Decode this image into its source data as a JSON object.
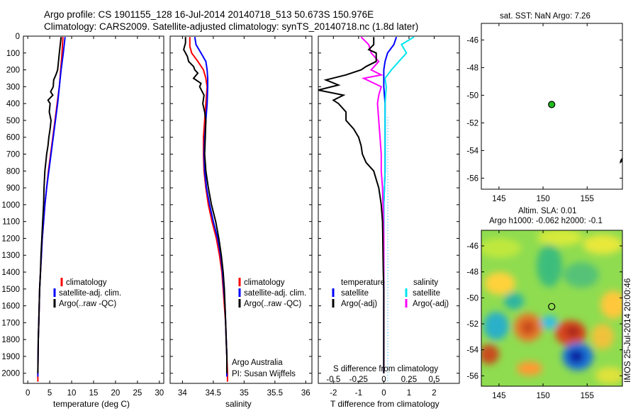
{
  "titles": {
    "line1": "Argo profile: CS 1901155_128 16-Jul-2014 20140718_513 50.673S 150.976E",
    "line2": "Climatology: CARS2009. Satellite-adjusted climatology: synTS_20140718.nc (1.8d later)"
  },
  "colors": {
    "climatology": "#ff0000",
    "satellite": "#0000ff",
    "argo": "#000000",
    "temp_diff_satellite": "#0000ff",
    "sal_diff_satellite": "#00e5ee",
    "sal_diff_argo": "#ff00ff",
    "argo_marker": "#22bb22"
  },
  "depth_ticks": [
    "0",
    "100",
    "200",
    "300",
    "400",
    "500",
    "600",
    "700",
    "800",
    "900",
    "1000",
    "1100",
    "1200",
    "1300",
    "1400",
    "1500",
    "1600",
    "1700",
    "1800",
    "1900",
    "2000"
  ],
  "chart_data": [
    {
      "id": "temperature",
      "type": "line",
      "xlabel": "temperature (deg C)",
      "ylabel": "",
      "xlim": [
        -1,
        31
      ],
      "ylim": [
        2060,
        0
      ],
      "xticks": [
        "0",
        "5",
        "10",
        "15",
        "20",
        "25",
        "30"
      ],
      "legend": {
        "placement": "lower-center",
        "entries": [
          "climatology",
          "satellite-adj. clim.",
          "Argo(..raw -QC)"
        ]
      },
      "series": [
        {
          "key": "climatology",
          "depth": [
            5,
            100,
            200,
            300,
            400,
            500,
            600,
            700,
            800,
            900,
            1000,
            1100,
            1200,
            1300,
            1400,
            1500,
            1600,
            1700,
            1800,
            1900,
            2000,
            2050
          ],
          "values": [
            8.0,
            7.8,
            7.5,
            7.2,
            6.7,
            6.2,
            5.7,
            5.2,
            4.7,
            4.3,
            3.9,
            3.6,
            3.3,
            3.1,
            2.9,
            2.7,
            2.6,
            2.5,
            2.4,
            2.35,
            2.3,
            2.3
          ]
        },
        {
          "key": "satellite",
          "depth": [
            5,
            100,
            200,
            300,
            400,
            500,
            600,
            700,
            800,
            900,
            1000,
            1100,
            1200,
            1300,
            1400,
            1500,
            1600,
            1700,
            1800,
            1900,
            2000,
            2020
          ],
          "values": [
            8.5,
            8.1,
            7.6,
            7.2,
            6.8,
            6.3,
            5.8,
            5.3,
            4.8,
            4.3,
            3.9,
            3.6,
            3.3,
            3.1,
            2.9,
            2.7,
            2.6,
            2.5,
            2.4,
            2.35,
            2.3,
            2.3
          ]
        },
        {
          "key": "argo",
          "depth": [
            5,
            50,
            100,
            150,
            200,
            230,
            260,
            300,
            330,
            350,
            380,
            400,
            450,
            500,
            550,
            600,
            650,
            700,
            750,
            800,
            850,
            900,
            1000,
            1100,
            1200,
            1300,
            1400,
            1500,
            1600,
            1700,
            1800,
            1900,
            2000
          ],
          "values": [
            7.6,
            7.4,
            7.2,
            7.0,
            6.8,
            6.4,
            5.9,
            5.8,
            5.2,
            5.7,
            4.6,
            5.1,
            4.9,
            5.3,
            5.1,
            4.8,
            4.6,
            4.3,
            4.1,
            3.9,
            3.8,
            3.7,
            3.6,
            3.4,
            3.2,
            3.0,
            2.9,
            2.7,
            2.6,
            2.5,
            2.4,
            2.35,
            2.3
          ]
        }
      ]
    },
    {
      "id": "salinity",
      "type": "line",
      "xlabel": "salinity",
      "ylabel": "",
      "xlim": [
        33.8,
        36.1
      ],
      "ylim": [
        2060,
        0
      ],
      "xticks": [
        "34",
        "34.5",
        "35",
        "35.5",
        "36"
      ],
      "legend": {
        "placement": "lower-center",
        "entries": [
          "climatology",
          "satellite-adj. clim.",
          "Argo(..raw -QC)"
        ]
      },
      "series": [
        {
          "key": "climatology",
          "depth": [
            5,
            60,
            100,
            150,
            200,
            250,
            300,
            400,
            500,
            600,
            700,
            800,
            900,
            1000,
            1100,
            1200,
            1300,
            1400,
            1500,
            1600,
            1700,
            1800,
            1900,
            2000,
            2050
          ],
          "values": [
            34.12,
            34.12,
            34.15,
            34.25,
            34.34,
            34.38,
            34.4,
            34.38,
            34.36,
            34.34,
            34.34,
            34.35,
            34.38,
            34.42,
            34.48,
            34.55,
            34.6,
            34.64,
            34.66,
            34.68,
            34.7,
            34.71,
            34.72,
            34.73,
            34.73
          ]
        },
        {
          "key": "satellite",
          "depth": [
            5,
            50,
            100,
            150,
            200,
            250,
            300,
            400,
            500,
            600,
            700,
            800,
            900,
            1000,
            1100,
            1200,
            1300,
            1400,
            1500,
            1600,
            1700,
            1800,
            1900,
            2000,
            2020
          ],
          "values": [
            34.2,
            34.22,
            34.3,
            34.38,
            34.4,
            34.41,
            34.41,
            34.4,
            34.38,
            34.36,
            34.35,
            34.36,
            34.39,
            34.44,
            34.5,
            34.57,
            34.62,
            34.65,
            34.67,
            34.69,
            34.7,
            34.71,
            34.72,
            34.72,
            34.72
          ]
        },
        {
          "key": "argo",
          "depth": [
            5,
            40,
            80,
            120,
            150,
            180,
            200,
            220,
            250,
            280,
            300,
            350,
            400,
            450,
            500,
            600,
            700,
            800,
            900,
            1000,
            1100,
            1200,
            1300,
            1400,
            1500,
            1600,
            1700,
            1800,
            1900,
            2000
          ],
          "values": [
            34.05,
            34.05,
            34.02,
            34.08,
            34.1,
            34.18,
            34.2,
            34.25,
            34.18,
            34.3,
            34.28,
            34.35,
            34.33,
            34.36,
            34.38,
            34.37,
            34.36,
            34.38,
            34.42,
            34.47,
            34.54,
            34.59,
            34.63,
            34.66,
            34.68,
            34.69,
            34.7,
            34.71,
            34.72,
            34.72
          ]
        }
      ],
      "annotation": [
        "Argo Australia",
        "PI: Susan Wijffels"
      ]
    },
    {
      "id": "difference",
      "type": "line",
      "xlabel": "T difference from climatology",
      "xlabel_top": "S difference from climatology",
      "ylabel": "",
      "xlim": [
        -2.6,
        3.0
      ],
      "ylim": [
        2060,
        0
      ],
      "xticks": [
        "-2",
        "-1",
        "0",
        "1",
        "2"
      ],
      "xticks_s": [
        "-0.5",
        "-0.25",
        "0",
        "0.25",
        "0.5"
      ],
      "legend": {
        "placement": "lower-center",
        "temperature_header": "temperature",
        "salinity_header": "salinity",
        "temperature_entries": [
          "satellite",
          "Argo(-adj)"
        ],
        "salinity_entries": [
          "satellite",
          "Argo(-adj)"
        ]
      },
      "series": [
        {
          "key": "temp_diff_satellite",
          "depth": [
            5,
            50,
            100,
            150,
            200,
            250,
            300,
            400,
            500,
            600,
            800,
            1000,
            1200,
            1500,
            1800,
            2000
          ],
          "values": [
            0.5,
            0.4,
            0.15,
            0.05,
            0.0,
            0.0,
            0.0,
            0.05,
            0.05,
            0.05,
            0.05,
            0.0,
            0.0,
            0.0,
            0.0,
            0.0
          ]
        },
        {
          "key": "sal_diff_satellite",
          "depth": [
            5,
            50,
            100,
            150,
            200,
            250,
            300,
            400,
            500,
            600,
            800,
            1000,
            1200,
            1500,
            1800,
            2000
          ],
          "values": [
            1.2,
            0.7,
            0.9,
            0.6,
            0.3,
            0.05,
            0.1,
            0.05,
            0.05,
            0.05,
            0.05,
            0.0,
            0.0,
            0.0,
            0.0,
            0.0
          ]
        },
        {
          "key": "sal_diff_argo",
          "depth": [
            5,
            50,
            100,
            150,
            200,
            230,
            250,
            300,
            350,
            400,
            500,
            600,
            700,
            800,
            900,
            1000,
            1200,
            1500,
            1800,
            2000
          ],
          "values": [
            -0.9,
            -0.6,
            -0.5,
            -0.2,
            -0.5,
            -0.1,
            -0.8,
            -0.1,
            -0.2,
            -0.25,
            -0.2,
            -0.15,
            -0.1,
            -0.1,
            -0.05,
            -0.03,
            0.0,
            0.0,
            0.0,
            0.0
          ]
        },
        {
          "key": "argo_temp_diff",
          "depth": [
            5,
            50,
            80,
            100,
            150,
            180,
            200,
            230,
            260,
            290,
            320,
            350,
            380,
            400,
            450,
            500,
            550,
            600,
            650,
            700,
            750,
            800,
            850,
            900,
            950,
            1000,
            1100,
            1200,
            1300,
            1400,
            1500,
            1600,
            1800,
            2000
          ],
          "values": [
            -0.4,
            -0.4,
            -0.6,
            -0.3,
            -0.3,
            -0.7,
            -0.9,
            -1.5,
            -2.3,
            -1.8,
            -2.6,
            -1.6,
            -2.0,
            -1.8,
            -1.5,
            -1.5,
            -1.2,
            -1.0,
            -0.9,
            -0.85,
            -0.7,
            -0.4,
            -0.3,
            -0.2,
            -0.15,
            -0.1,
            -0.05,
            -0.04,
            -0.03,
            -0.02,
            0.0,
            0.0,
            0.0,
            0.0
          ]
        }
      ]
    },
    {
      "id": "sst_map",
      "type": "scatter",
      "title": "sat. SST: NaN Argo: 7.26",
      "xlabel": "",
      "ylabel": "",
      "xlim": [
        143,
        159
      ],
      "ylim": [
        -56.8,
        -44.8
      ],
      "xticks": [
        "145",
        "150",
        "155"
      ],
      "yticks": [
        "-46",
        "-48",
        "-50",
        "-52",
        "-54",
        "-56"
      ],
      "points": [
        {
          "x": 150.976,
          "y": -50.673
        }
      ]
    },
    {
      "id": "sla_map",
      "type": "heatmap",
      "title_line1": "Altim. SLA: 0.01",
      "title_line2": "Argo h1000: -0.062 h2000: -0.1",
      "xlabel": "",
      "ylabel": "",
      "xlim": [
        143,
        159
      ],
      "ylim": [
        -56.8,
        -44.8
      ],
      "xticks": [
        "145",
        "150",
        "155"
      ],
      "yticks": [
        "-46",
        "-48",
        "-50",
        "-52",
        "-54",
        "-56"
      ],
      "points": [
        {
          "x": 150.976,
          "y": -50.673
        }
      ],
      "stamp": "IMOS 25-Jul-2014 20:00:46"
    }
  ]
}
